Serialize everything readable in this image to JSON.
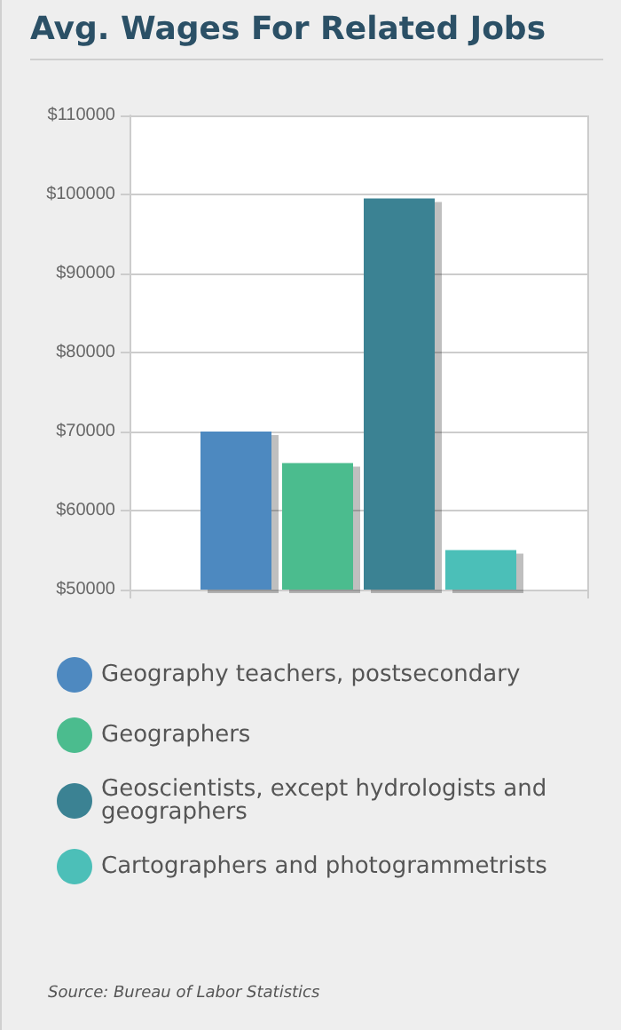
{
  "chart_data": {
    "type": "bar",
    "title": "Avg. Wages For Related Jobs",
    "categories": [
      null
    ],
    "series": [
      {
        "name": "Geography teachers, postsecondary",
        "color": "#4e89c0",
        "values": [
          70000
        ]
      },
      {
        "name": "Geographers",
        "color": "#4bbc8e",
        "values": [
          66000
        ]
      },
      {
        "name": "Geoscientists, except hydrologists and geographers",
        "color": "#3b8293",
        "values": [
          99500
        ]
      },
      {
        "name": "Cartographers and photogrammetrists",
        "color": "#4cbfb8",
        "values": [
          55000
        ]
      }
    ],
    "ylim": [
      50000,
      110000
    ],
    "yticks": [
      {
        "value": 50000,
        "label": "$50000"
      },
      {
        "value": 60000,
        "label": "$60000"
      },
      {
        "value": 70000,
        "label": "$70000"
      },
      {
        "value": 80000,
        "label": "$80000"
      },
      {
        "value": 90000,
        "label": "$90000"
      },
      {
        "value": 100000,
        "label": "$100000"
      },
      {
        "value": 110000,
        "label": "$110000"
      }
    ],
    "grid": true,
    "legend": "bottom",
    "annotations": [
      "Source: Bureau of Labor Statistics"
    ]
  }
}
